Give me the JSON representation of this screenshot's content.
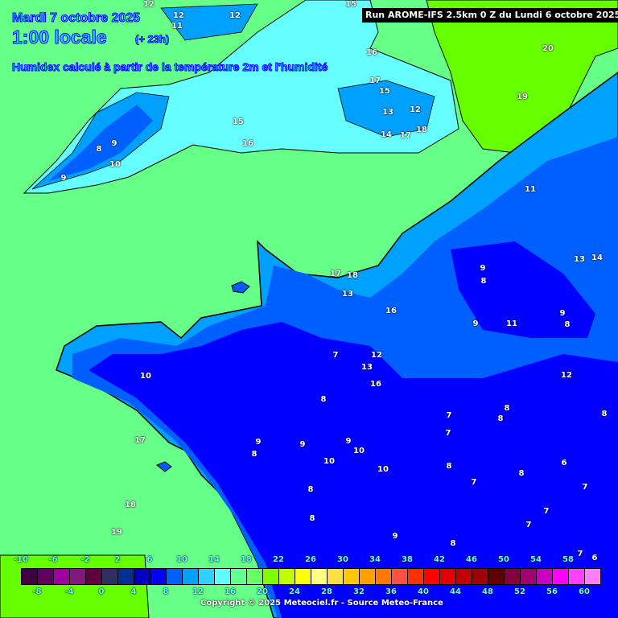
{
  "header": {
    "date": "Mardi 7 octobre 2025",
    "time": "1:00 locale",
    "offset": "(+ 23h)",
    "description": "Humidex calculé à partir de la température 2m et l'humidité",
    "run": "Run AROME-IFS 2.5km 0 Z du Lundi 6 octobre 2025"
  },
  "legend": {
    "colors": [
      "#400040",
      "#600060",
      "#a000a0",
      "#801880",
      "#600040",
      "#303060",
      "#003090",
      "#0000c0",
      "#0000ff",
      "#0060ff",
      "#00a0ff",
      "#30d0ff",
      "#60ffff",
      "#60ff90",
      "#66ff66",
      "#80ff00",
      "#c0ff00",
      "#ffff00",
      "#ffff80",
      "#ffe040",
      "#ffc800",
      "#ffa000",
      "#ff7800",
      "#ff5040",
      "#ff3000",
      "#ff0000",
      "#e00000",
      "#c00000",
      "#a00000",
      "#600000",
      "#800040",
      "#a00070",
      "#c800c0",
      "#ff00ff",
      "#ff40ff",
      "#ff80ff"
    ],
    "top_ticks": [
      "-10",
      "-6",
      "-2",
      "2",
      "6",
      "10",
      "14",
      "18",
      "22",
      "26",
      "30",
      "34",
      "38",
      "42",
      "46",
      "50",
      "54",
      "58"
    ],
    "bottom_ticks": [
      "-8",
      "-4",
      "0",
      "4",
      "8",
      "12",
      "16",
      "20",
      "24",
      "28",
      "32",
      "36",
      "40",
      "44",
      "48",
      "52",
      "56",
      "60"
    ]
  },
  "contour_labels": [
    "12",
    "12",
    "11",
    "12",
    "15",
    "16",
    "17",
    "15",
    "13",
    "12",
    "18",
    "14",
    "17",
    "15",
    "16",
    "20",
    "19",
    "8",
    "9",
    "10",
    "9",
    "11",
    "13",
    "14",
    "9",
    "8",
    "17",
    "18",
    "16",
    "13",
    "12",
    "13",
    "9",
    "11",
    "9",
    "8",
    "7",
    "12",
    "10",
    "16",
    "8",
    "7",
    "8",
    "8",
    "7",
    "8",
    "17",
    "9",
    "9",
    "9",
    "10",
    "10",
    "10",
    "8",
    "7",
    "6",
    "8",
    "8",
    "8",
    "7",
    "7",
    "7",
    "8",
    "9",
    "8",
    "7",
    "18",
    "19",
    "6"
  ],
  "copyright": "Copyright © 2025 Meteociel.fr - Source Meteo-France"
}
